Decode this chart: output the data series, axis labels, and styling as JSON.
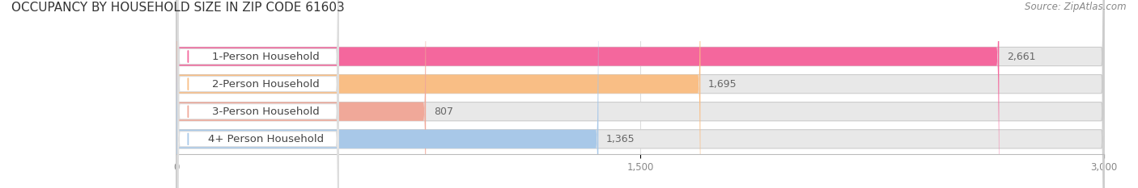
{
  "title": "OCCUPANCY BY HOUSEHOLD SIZE IN ZIP CODE 61603",
  "source": "Source: ZipAtlas.com",
  "categories": [
    "1-Person Household",
    "2-Person Household",
    "3-Person Household",
    "4+ Person Household"
  ],
  "values": [
    2661,
    1695,
    807,
    1365
  ],
  "bar_colors": [
    "#F4679D",
    "#F9BE85",
    "#F0A899",
    "#A8C8E8"
  ],
  "xlim": [
    0,
    3000
  ],
  "xticks": [
    0,
    1500,
    3000
  ],
  "background_color": "#ffffff",
  "bar_background_color": "#e8e8e8",
  "bar_border_color": "#cccccc",
  "title_fontsize": 11,
  "source_fontsize": 8.5,
  "label_fontsize": 9.5,
  "value_fontsize": 9
}
